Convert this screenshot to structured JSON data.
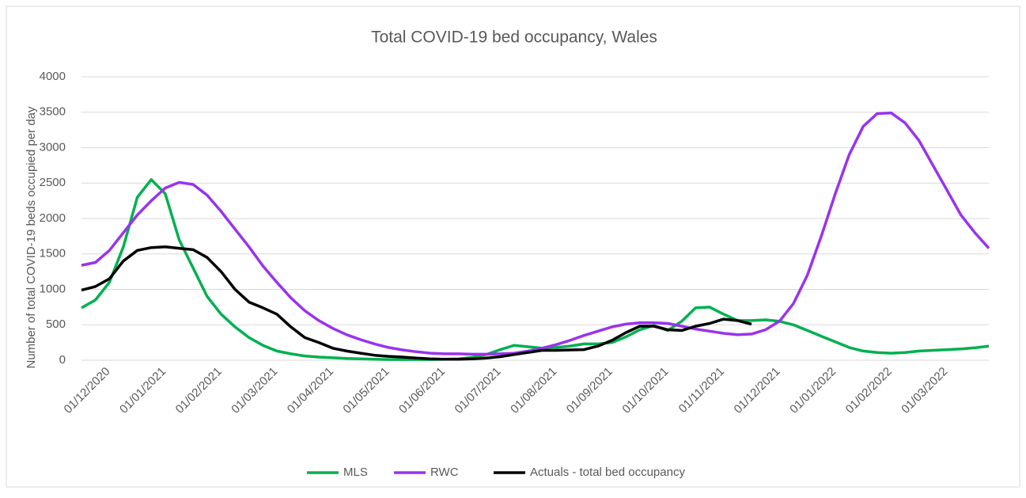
{
  "chart_data": {
    "type": "line",
    "title": "Total COVID-19 bed occupancy, Wales",
    "y_label": "Number of total COVID-19 beds occupied per day",
    "categories": [
      "01/12/2020",
      null,
      null,
      null,
      "01/01/2021",
      null,
      null,
      null,
      "01/02/2021",
      null,
      null,
      null,
      "01/03/2021",
      null,
      null,
      null,
      "01/04/2021",
      null,
      null,
      null,
      "01/05/2021",
      null,
      null,
      null,
      "01/06/2021",
      null,
      null,
      null,
      "01/07/2021",
      null,
      null,
      null,
      "01/08/2021",
      null,
      null,
      null,
      "01/09/2021",
      null,
      null,
      null,
      "01/10/2021",
      null,
      null,
      null,
      "01/11/2021",
      null,
      null,
      null,
      "01/12/2021",
      null,
      null,
      null,
      "01/01/2022",
      null,
      null,
      null,
      "01/02/2022",
      null,
      null,
      null,
      "01/03/2022",
      null,
      null,
      null,
      null,
      null
    ],
    "series": [
      {
        "name": "MLS",
        "color": "#00b050",
        "values": [
          740,
          850,
          1100,
          1600,
          2300,
          2550,
          2350,
          1700,
          1300,
          900,
          650,
          470,
          320,
          210,
          130,
          90,
          60,
          45,
          35,
          25,
          20,
          15,
          10,
          10,
          10,
          10,
          15,
          20,
          40,
          80,
          150,
          210,
          190,
          170,
          180,
          200,
          230,
          230,
          250,
          330,
          430,
          490,
          420,
          550,
          740,
          750,
          650,
          560,
          560,
          570,
          550,
          500,
          420,
          340,
          260,
          180,
          130,
          110,
          100,
          110,
          130,
          140,
          150,
          160,
          175,
          200
        ]
      },
      {
        "name": "RWC",
        "color": "#9933ee",
        "values": [
          1340,
          1380,
          1550,
          1800,
          2050,
          2250,
          2430,
          2510,
          2480,
          2330,
          2100,
          1850,
          1600,
          1330,
          1100,
          880,
          700,
          560,
          450,
          360,
          290,
          230,
          180,
          145,
          120,
          100,
          90,
          90,
          85,
          85,
          90,
          100,
          130,
          170,
          220,
          280,
          350,
          410,
          470,
          510,
          530,
          530,
          520,
          480,
          440,
          410,
          380,
          360,
          370,
          430,
          550,
          800,
          1200,
          1750,
          2350,
          2900,
          3300,
          3480,
          3490,
          3350,
          3100,
          2750,
          2400,
          2050,
          1800,
          1580
        ]
      },
      {
        "name": "Actuals - total bed occupancy",
        "color": "#000000",
        "values": [
          990,
          1040,
          1150,
          1400,
          1550,
          1590,
          1600,
          1580,
          1560,
          1450,
          1250,
          1000,
          820,
          740,
          650,
          470,
          320,
          250,
          170,
          130,
          100,
          70,
          55,
          45,
          30,
          20,
          15,
          15,
          20,
          30,
          50,
          80,
          110,
          140,
          140,
          145,
          150,
          200,
          280,
          390,
          480,
          480,
          430,
          420,
          480,
          520,
          580,
          560,
          510,
          null,
          null,
          null,
          null,
          null,
          null,
          null,
          null,
          null,
          null,
          null,
          null,
          null,
          null,
          null,
          null,
          null
        ]
      }
    ],
    "ylim": [
      0,
      4000
    ],
    "yticks": [
      0,
      500,
      1000,
      1500,
      2000,
      2500,
      3000,
      3500,
      4000
    ],
    "grid": true,
    "legend": "bottom"
  }
}
